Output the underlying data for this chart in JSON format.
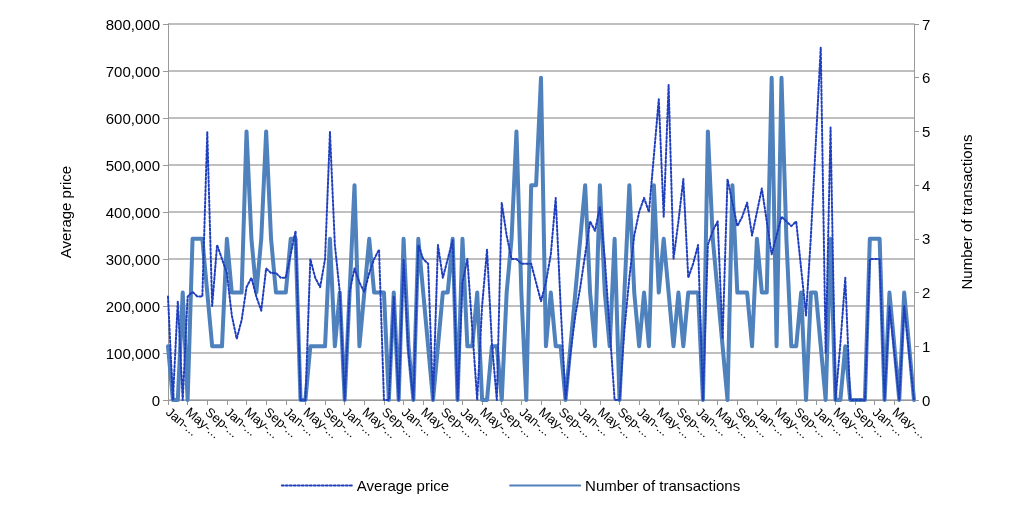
{
  "chart_data": {
    "type": "line",
    "ylabel": "Average price",
    "y2label": "Number of transactions",
    "categories": [
      "Jan-...",
      null,
      null,
      null,
      "May-...",
      null,
      null,
      null,
      "Sep-...",
      null,
      null,
      null,
      "Jan-...",
      null,
      null,
      null,
      "May-...",
      null,
      null,
      null,
      "Sep-...",
      null,
      null,
      null,
      "Jan-...",
      null,
      null,
      null,
      "May-...",
      null,
      null,
      null,
      "Sep-...",
      null,
      null,
      null,
      "Jan-...",
      null,
      null,
      null,
      "May-...",
      null,
      null,
      null,
      "Sep-...",
      null,
      null,
      null,
      "Jan-...",
      null,
      null,
      null,
      "May-...",
      null,
      null,
      null,
      "Sep-...",
      null,
      null,
      null,
      "Jan-...",
      null,
      null,
      null,
      "May-...",
      null,
      null,
      null,
      "Sep-...",
      null,
      null,
      null,
      "Jan-...",
      null,
      null,
      null,
      "May-...",
      null,
      null,
      null,
      "Sep-...",
      null,
      null,
      null,
      "Jan-...",
      null,
      null,
      null,
      "May-...",
      null,
      null,
      null,
      "Sep-...",
      null,
      null,
      null,
      "Jan-...",
      null,
      null,
      null,
      "May-...",
      null,
      null,
      null,
      "Sep-...",
      null,
      null,
      null,
      "Jan-...",
      null,
      null,
      null,
      "May-...",
      null,
      null,
      null,
      "Sep-...",
      null,
      null,
      null,
      "Jan-...",
      null,
      null,
      null,
      "May-...",
      null,
      null,
      null,
      "Sep-...",
      null,
      null,
      null,
      "Jan-...",
      null,
      null,
      null,
      "May-...",
      null,
      null,
      null,
      "Sep-...",
      null,
      null,
      null,
      "Jan-...",
      null,
      null,
      null,
      "May-...",
      null,
      null,
      null,
      null
    ],
    "series": [
      {
        "name": "Average price",
        "color": "#1f3fbf",
        "line_style": "dotted",
        "values": [
          220000,
          0,
          210000,
          0,
          220000,
          230000,
          220000,
          220000,
          570000,
          200000,
          330000,
          300000,
          270000,
          180000,
          130000,
          170000,
          240000,
          260000,
          220000,
          190000,
          280000,
          270000,
          270000,
          260000,
          260000,
          310000,
          360000,
          0,
          0,
          300000,
          260000,
          240000,
          300000,
          570000,
          330000,
          230000,
          0,
          230000,
          280000,
          250000,
          230000,
          270000,
          300000,
          320000,
          0,
          0,
          220000,
          0,
          300000,
          100000,
          0,
          330000,
          300000,
          290000,
          0,
          330000,
          260000,
          300000,
          340000,
          0,
          250000,
          300000,
          150000,
          0,
          200000,
          320000,
          120000,
          0,
          420000,
          350000,
          300000,
          300000,
          290000,
          290000,
          290000,
          250000,
          210000,
          250000,
          310000,
          430000,
          200000,
          0,
          100000,
          180000,
          240000,
          310000,
          380000,
          360000,
          410000,
          300000,
          150000,
          0,
          0,
          150000,
          260000,
          350000,
          400000,
          430000,
          400000,
          520000,
          640000,
          390000,
          670000,
          300000,
          380000,
          470000,
          260000,
          290000,
          330000,
          0,
          330000,
          360000,
          380000,
          130000,
          470000,
          420000,
          370000,
          390000,
          420000,
          350000,
          400000,
          450000,
          380000,
          310000,
          350000,
          390000,
          380000,
          370000,
          380000,
          280000,
          180000,
          350000,
          550000,
          750000,
          100000,
          580000,
          0,
          120000,
          260000,
          0,
          0,
          0,
          0,
          300000,
          300000,
          300000,
          0,
          200000,
          100000,
          0,
          200000,
          100000,
          0
        ]
      },
      {
        "name": "Number of transactions",
        "color": "#4f81bd",
        "axis": "y2",
        "line_style": "solid",
        "values": [
          1,
          0,
          0,
          2,
          0,
          3,
          3,
          3,
          2,
          1,
          1,
          1,
          3,
          2,
          2,
          2,
          5,
          3,
          2,
          3,
          5,
          3,
          2,
          2,
          2,
          3,
          3,
          0,
          0,
          1,
          1,
          1,
          1,
          3,
          1,
          2,
          0,
          2,
          4,
          1,
          2,
          3,
          2,
          2,
          2,
          0,
          2,
          0,
          3,
          1,
          0,
          3,
          2,
          1,
          0,
          1,
          2,
          2,
          3,
          0,
          3,
          1,
          1,
          2,
          0,
          0,
          1,
          1,
          0,
          2,
          3,
          5,
          2,
          0,
          4,
          4,
          6,
          1,
          2,
          1,
          1,
          0,
          1,
          2,
          3,
          4,
          2,
          1,
          4,
          2,
          1,
          3,
          0,
          2,
          4,
          2,
          1,
          2,
          1,
          4,
          2,
          3,
          2,
          1,
          2,
          1,
          2,
          2,
          2,
          0,
          5,
          3,
          2,
          1,
          0,
          4,
          2,
          2,
          2,
          1,
          3,
          2,
          2,
          6,
          1,
          6,
          3,
          1,
          1,
          2,
          0,
          2,
          2,
          1,
          0,
          3,
          0,
          0,
          1,
          0,
          0,
          0,
          0,
          3,
          3,
          3,
          0,
          2,
          1,
          0,
          2,
          1,
          0
        ]
      }
    ],
    "ylim": [
      0,
      800000
    ],
    "yticks": [
      0,
      {
        "value": 100000,
        "label": "100,000"
      },
      {
        "value": 200000,
        "label": "200,000"
      },
      {
        "value": 300000,
        "label": "300,000"
      },
      {
        "value": 400000,
        "label": "400,000"
      },
      {
        "value": 500000,
        "label": "500,000"
      },
      {
        "value": 600000,
        "label": "600,000"
      },
      {
        "value": 700000,
        "label": "700,000"
      },
      {
        "value": 800000,
        "label": "800,000"
      }
    ],
    "y2lim": [
      0,
      7
    ],
    "y2ticks": [
      0,
      1,
      2,
      3,
      4,
      5,
      6,
      7
    ],
    "grid": "y",
    "legend": "bottom",
    "marker": "none"
  }
}
